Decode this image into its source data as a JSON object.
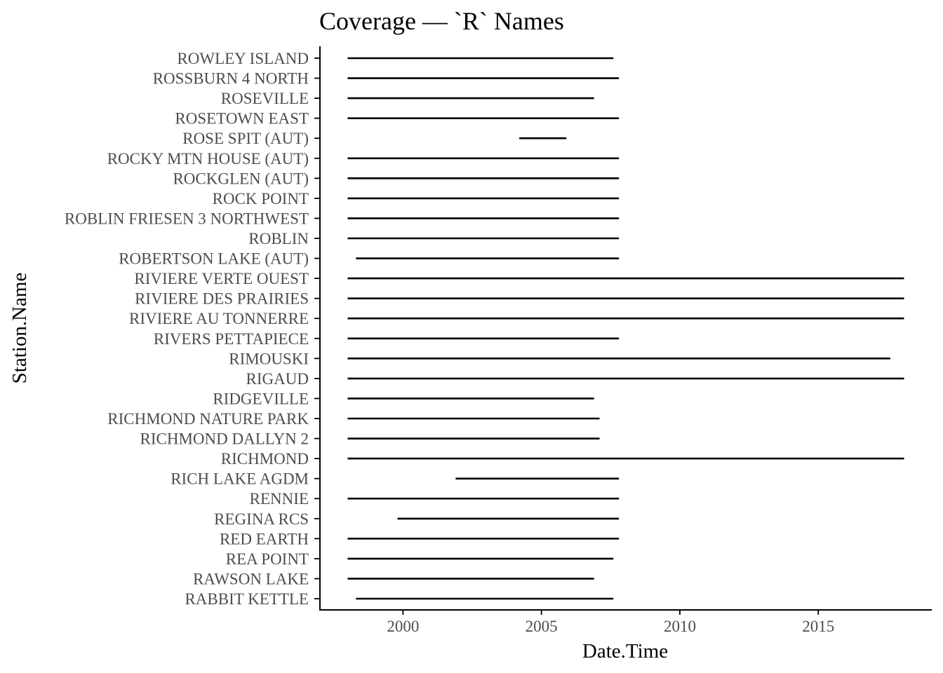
{
  "chart_data": {
    "type": "segment",
    "title": "Coverage — `R` Names",
    "xlabel": "Date.Time",
    "ylabel": "Station.Name",
    "xlim": [
      1997.0,
      2019.1
    ],
    "x_ticks": [
      2000,
      2005,
      2010,
      2015
    ],
    "grid": false,
    "legend": "none",
    "stations": [
      {
        "name": "RABBIT KETTLE",
        "start": 1998.3,
        "end": 2007.6
      },
      {
        "name": "RAWSON LAKE",
        "start": 1998.0,
        "end": 2006.9
      },
      {
        "name": "REA POINT",
        "start": 1998.0,
        "end": 2007.6
      },
      {
        "name": "RED EARTH",
        "start": 1998.0,
        "end": 2007.8
      },
      {
        "name": "REGINA RCS",
        "start": 1999.8,
        "end": 2007.8
      },
      {
        "name": "RENNIE",
        "start": 1998.0,
        "end": 2007.8
      },
      {
        "name": "RICH LAKE AGDM",
        "start": 2001.9,
        "end": 2007.8
      },
      {
        "name": "RICHMOND",
        "start": 1998.0,
        "end": 2018.1
      },
      {
        "name": "RICHMOND DALLYN 2",
        "start": 1998.0,
        "end": 2007.1
      },
      {
        "name": "RICHMOND NATURE PARK",
        "start": 1998.0,
        "end": 2007.1
      },
      {
        "name": "RIDGEVILLE",
        "start": 1998.0,
        "end": 2006.9
      },
      {
        "name": "RIGAUD",
        "start": 1998.0,
        "end": 2018.1
      },
      {
        "name": "RIMOUSKI",
        "start": 1998.0,
        "end": 2017.6
      },
      {
        "name": "RIVERS PETTAPIECE",
        "start": 1998.0,
        "end": 2007.8
      },
      {
        "name": "RIVIERE AU TONNERRE",
        "start": 1998.0,
        "end": 2018.1
      },
      {
        "name": "RIVIERE DES PRAIRIES",
        "start": 1998.0,
        "end": 2018.1
      },
      {
        "name": "RIVIERE VERTE OUEST",
        "start": 1998.0,
        "end": 2018.1
      },
      {
        "name": "ROBERTSON LAKE (AUT)",
        "start": 1998.3,
        "end": 2007.8
      },
      {
        "name": "ROBLIN",
        "start": 1998.0,
        "end": 2007.8
      },
      {
        "name": "ROBLIN FRIESEN 3 NORTHWEST",
        "start": 1998.0,
        "end": 2007.8
      },
      {
        "name": "ROCK POINT",
        "start": 1998.0,
        "end": 2007.8
      },
      {
        "name": "ROCKGLEN (AUT)",
        "start": 1998.0,
        "end": 2007.8
      },
      {
        "name": "ROCKY MTN HOUSE (AUT)",
        "start": 1998.0,
        "end": 2007.8
      },
      {
        "name": "ROSE SPIT (AUT)",
        "start": 2004.2,
        "end": 2005.9
      },
      {
        "name": "ROSETOWN EAST",
        "start": 1998.0,
        "end": 2007.8
      },
      {
        "name": "ROSEVILLE",
        "start": 1998.0,
        "end": 2006.9
      },
      {
        "name": "ROSSBURN 4 NORTH",
        "start": 1998.0,
        "end": 2007.8
      },
      {
        "name": "ROWLEY ISLAND",
        "start": 1998.0,
        "end": 2007.6
      }
    ]
  }
}
